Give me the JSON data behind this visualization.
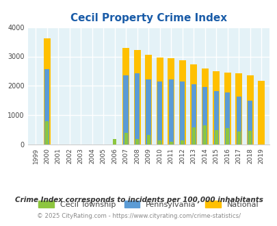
{
  "title": "Cecil Property Crime Index",
  "years": [
    1999,
    2000,
    2001,
    2002,
    2003,
    2004,
    2005,
    2006,
    2007,
    2008,
    2009,
    2010,
    2011,
    2012,
    2013,
    2014,
    2015,
    2016,
    2017,
    2018,
    2019
  ],
  "cecil": [
    0,
    800,
    0,
    0,
    0,
    0,
    0,
    200,
    400,
    200,
    340,
    150,
    100,
    150,
    580,
    650,
    500,
    570,
    450,
    460,
    0
  ],
  "pennsylvania": [
    0,
    2580,
    0,
    0,
    0,
    0,
    0,
    0,
    2370,
    2440,
    2210,
    2160,
    2210,
    2160,
    2060,
    1960,
    1820,
    1770,
    1640,
    1500,
    0
  ],
  "national": [
    0,
    3620,
    0,
    0,
    0,
    0,
    0,
    0,
    3280,
    3220,
    3050,
    2960,
    2940,
    2870,
    2730,
    2600,
    2510,
    2460,
    2420,
    2370,
    2180
  ],
  "cecil_color": "#8dc63f",
  "pennsylvania_color": "#5b9bd5",
  "national_color": "#ffc000",
  "bg_color": "#e4f2f7",
  "grid_color": "#ffffff",
  "ylim": [
    0,
    4000
  ],
  "yticks": [
    0,
    1000,
    2000,
    3000,
    4000
  ],
  "footnote1": "Crime Index corresponds to incidents per 100,000 inhabitants",
  "footnote2": "© 2025 CityRating.com - https://www.cityrating.com/crime-statistics/",
  "title_color": "#1a5ca8",
  "footnote1_color": "#333333",
  "footnote2_color": "#888888"
}
